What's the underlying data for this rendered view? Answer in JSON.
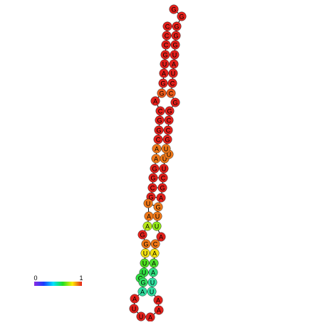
{
  "nodes": [
    {
      "label": "C",
      "color": "#e3201b"
    },
    {
      "label": "C",
      "color": "#e3201b"
    },
    {
      "label": "C",
      "color": "#e3201b"
    },
    {
      "label": "G",
      "color": "#e3201b"
    },
    {
      "label": "U",
      "color": "#e3201b"
    },
    {
      "label": "A",
      "color": "#e3201b"
    },
    {
      "label": "G",
      "color": "#e3201b"
    },
    {
      "label": "G",
      "color": "#ec5a1a"
    },
    {
      "label": "A",
      "color": "#e3201b"
    },
    {
      "label": "C",
      "color": "#e3201b"
    },
    {
      "label": "G",
      "color": "#e3201b"
    },
    {
      "label": "G",
      "color": "#e3201b"
    },
    {
      "label": "C",
      "color": "#e3201b"
    },
    {
      "label": "A",
      "color": "#f07818"
    },
    {
      "label": "A",
      "color": "#f07818"
    },
    {
      "label": "G",
      "color": "#e3201b"
    },
    {
      "label": "G",
      "color": "#e3201b"
    },
    {
      "label": "C",
      "color": "#e3201b"
    },
    {
      "label": "G",
      "color": "#e3201b"
    },
    {
      "label": "U",
      "color": "#f07818"
    },
    {
      "label": "A",
      "color": "#f07818"
    },
    {
      "label": "A",
      "color": "#b8e817"
    },
    {
      "label": "G",
      "color": "#e3201b"
    },
    {
      "label": "G",
      "color": "#f07818"
    },
    {
      "label": "U",
      "color": "#f2e012"
    },
    {
      "label": "U",
      "color": "#50e020"
    },
    {
      "label": "U",
      "color": "#30e040"
    },
    {
      "label": "C",
      "color": "#30e040"
    },
    {
      "label": "G",
      "color": "#30e060"
    },
    {
      "label": "A",
      "color": "#30e0a0"
    },
    {
      "label": "A",
      "color": "#e3201b"
    },
    {
      "label": "U",
      "color": "#e3201b"
    },
    {
      "label": "U",
      "color": "#e3201b"
    },
    {
      "label": "A",
      "color": "#e3201b"
    },
    {
      "label": "A",
      "color": "#e3201b"
    },
    {
      "label": "A",
      "color": "#e3201b"
    },
    {
      "label": "U",
      "color": "#30e0a0"
    },
    {
      "label": "U",
      "color": "#30e0a0"
    },
    {
      "label": "A",
      "color": "#30e080"
    },
    {
      "label": "A",
      "color": "#50e030"
    },
    {
      "label": "A",
      "color": "#f2e012"
    },
    {
      "label": "C",
      "color": "#f07818"
    },
    {
      "label": "A",
      "color": "#e3201b"
    },
    {
      "label": "U",
      "color": "#90e817"
    },
    {
      "label": "U",
      "color": "#f07818"
    },
    {
      "label": "G",
      "color": "#f07818"
    },
    {
      "label": "A",
      "color": "#e3201b"
    },
    {
      "label": "G",
      "color": "#e3201b"
    },
    {
      "label": "C",
      "color": "#e3201b"
    },
    {
      "label": "U",
      "color": "#e3201b"
    },
    {
      "label": "U",
      "color": "#f07818"
    },
    {
      "label": "U",
      "color": "#f07818"
    },
    {
      "label": "U",
      "color": "#f07818"
    },
    {
      "label": "G",
      "color": "#e3201b"
    },
    {
      "label": "C",
      "color": "#e3201b"
    },
    {
      "label": "C",
      "color": "#e3201b"
    },
    {
      "label": "G",
      "color": "#e3201b"
    },
    {
      "label": "G",
      "color": "#e3201b"
    },
    {
      "label": "C",
      "color": "#ec5a1a"
    },
    {
      "label": "C",
      "color": "#e3201b"
    },
    {
      "label": "U",
      "color": "#e3201b"
    },
    {
      "label": "A",
      "color": "#e3201b"
    },
    {
      "label": "U",
      "color": "#e3201b"
    },
    {
      "label": "G",
      "color": "#e3201b"
    },
    {
      "label": "G",
      "color": "#e3201b"
    },
    {
      "label": "G",
      "color": "#e3201b"
    },
    {
      "label": "G",
      "color": "#e3201b"
    },
    {
      "label": "G",
      "color": "#e3201b"
    }
  ],
  "legend": {
    "min_label": "0",
    "max_label": "1"
  }
}
